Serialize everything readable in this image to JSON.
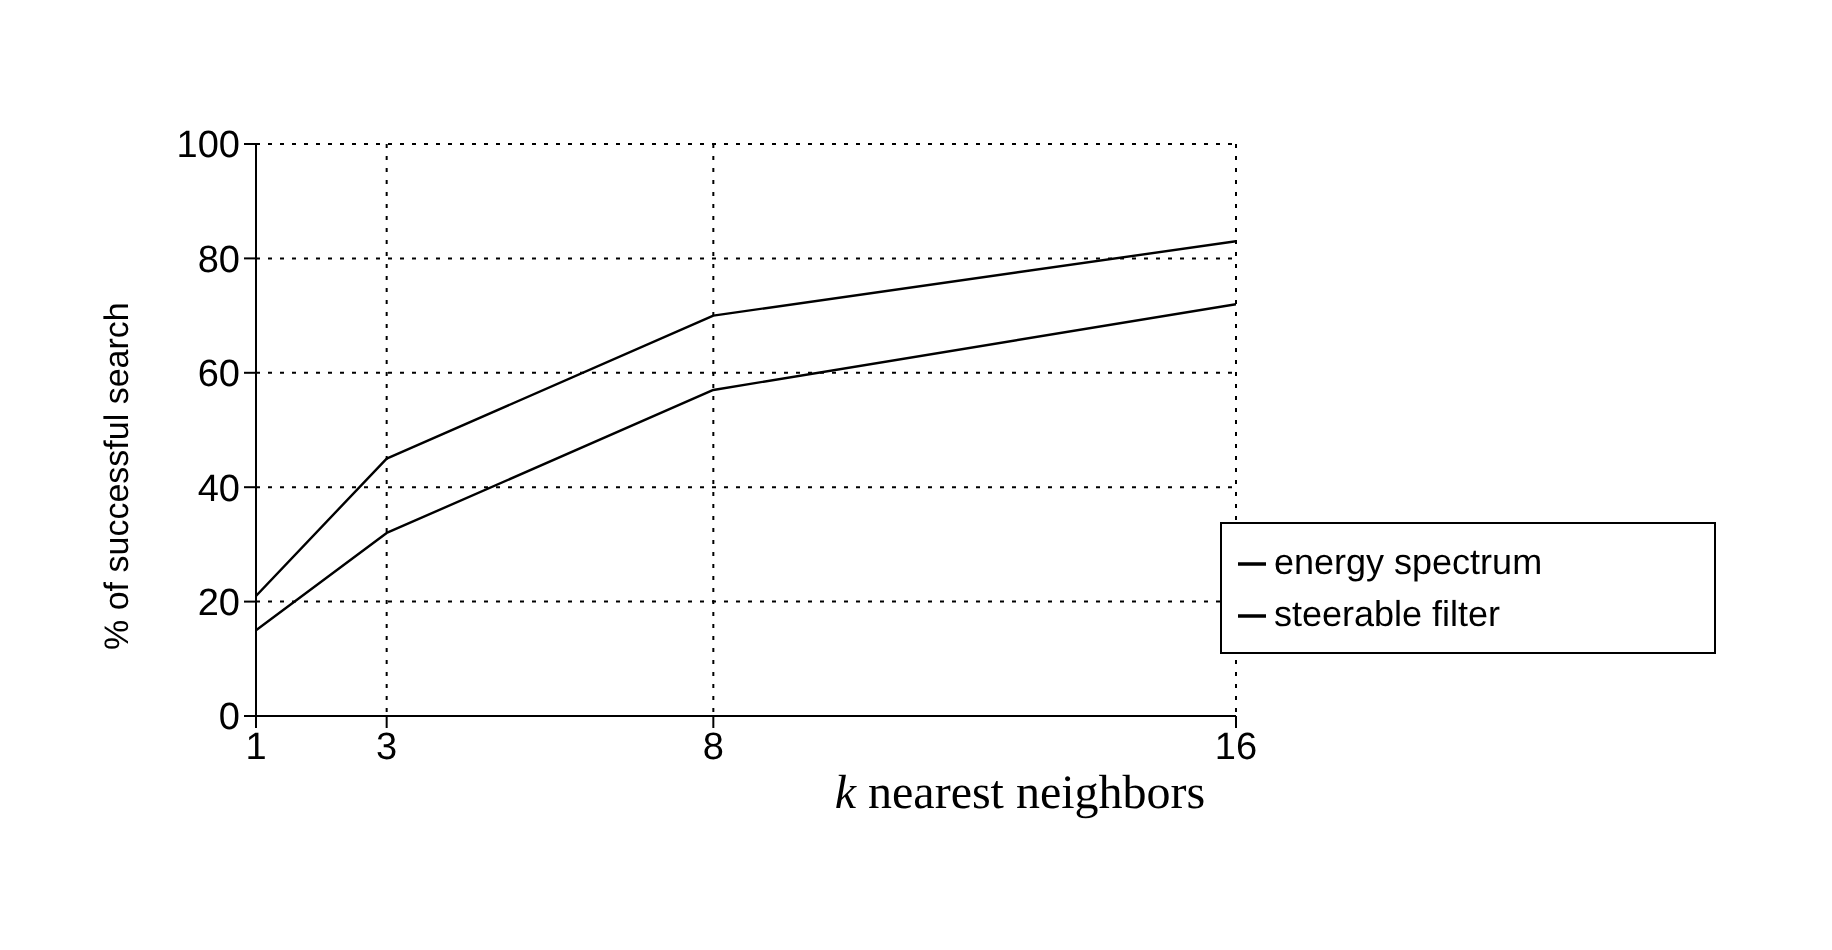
{
  "chart_data": {
    "type": "line",
    "xlabel": "k nearest neighbors",
    "ylabel": "% of successful search",
    "x": [
      1,
      3,
      8,
      16
    ],
    "series": [
      {
        "name": "energy spectrum",
        "color": "#000000",
        "values": [
          21,
          45,
          70,
          83
        ]
      },
      {
        "name": "steerable filter",
        "color": "#000000",
        "values": [
          15,
          32,
          57,
          72
        ]
      }
    ],
    "xlim": [
      1,
      16
    ],
    "xticks": [
      1,
      3,
      8,
      16
    ],
    "ylim": [
      0,
      100
    ],
    "yticks": [
      0,
      20,
      40,
      60,
      80,
      100
    ],
    "grid": true,
    "legend": "bottom right",
    "marker": "none",
    "line_style": "solid"
  }
}
